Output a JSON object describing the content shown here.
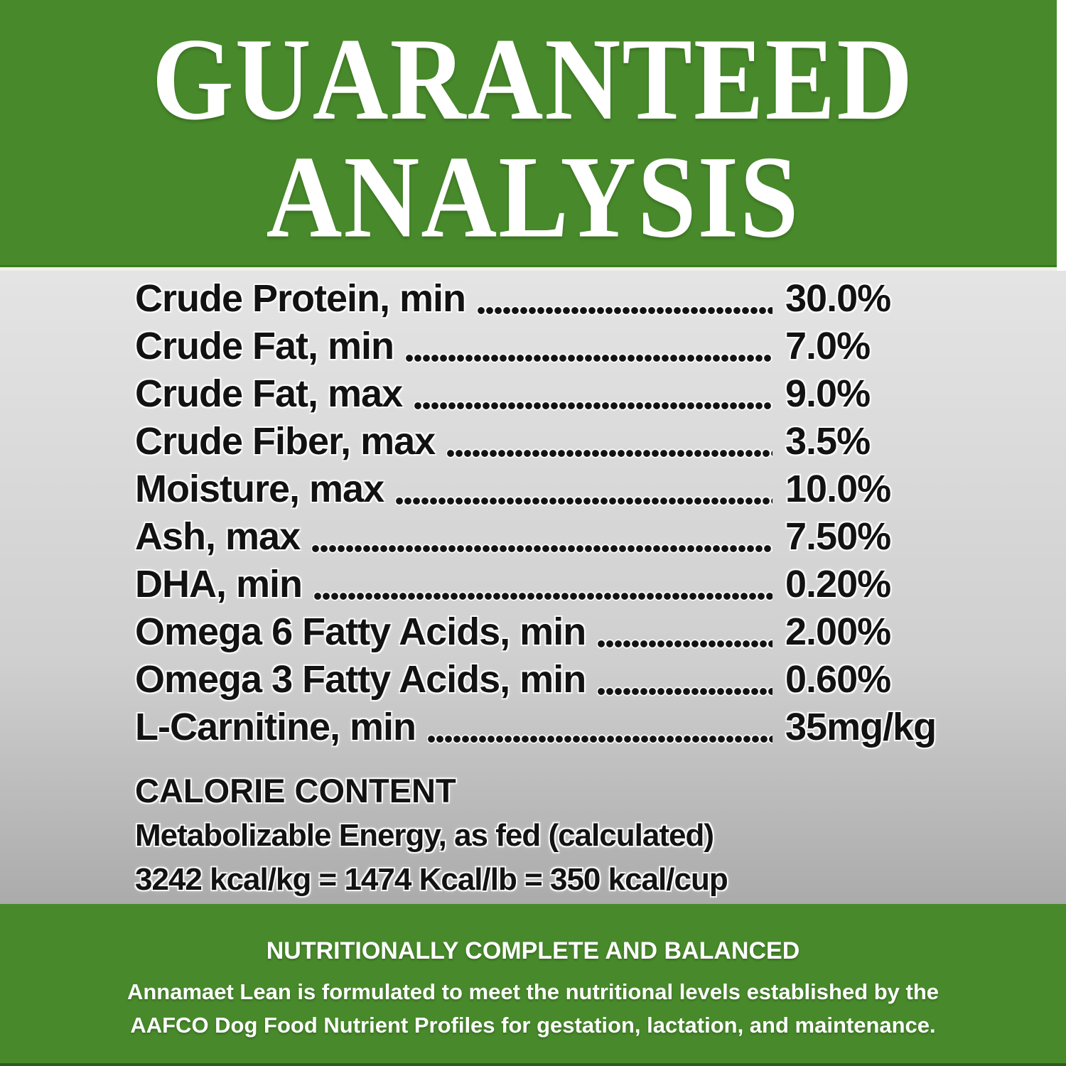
{
  "header": {
    "title_line1": "GUARANTEED",
    "title_line2": "ANALYSIS"
  },
  "analysis": {
    "rows": [
      {
        "label": "Crude Protein, min",
        "value": "30.0%"
      },
      {
        "label": "Crude Fat, min",
        "value": "7.0%"
      },
      {
        "label": "Crude Fat, max",
        "value": "9.0%"
      },
      {
        "label": "Crude Fiber, max",
        "value": "3.5%"
      },
      {
        "label": "Moisture, max",
        "value": "10.0%"
      },
      {
        "label": "Ash, max",
        "value": "7.50%"
      },
      {
        "label": "DHA, min",
        "value": "0.20%"
      },
      {
        "label": "Omega 6 Fatty Acids, min",
        "value": "2.00%"
      },
      {
        "label": "Omega 3 Fatty Acids, min",
        "value": "0.60%"
      },
      {
        "label": "L-Carnitine, min",
        "value": "35mg/kg"
      }
    ]
  },
  "calorie": {
    "heading": "CALORIE CONTENT",
    "line1": "Metabolizable Energy, as fed (calculated)",
    "line2": "3242 kcal/kg = 1474 Kcal/lb = 350 kcal/cup"
  },
  "footer": {
    "heading": "NUTRITIONALLY COMPLETE AND BALANCED",
    "line1": "Annamaet Lean is formulated to meet the nutritional levels established by the",
    "line2": "AAFCO Dog Food Nutrient Profiles for gestation, lactation, and maintenance."
  },
  "colors": {
    "green": "#488a2b",
    "green_dark_edge": "#3a7a1f",
    "divider": "#eef0e9",
    "gray_top": "#e4e4e4",
    "gray_bottom": "#ababab",
    "text": "#121212",
    "white": "#ffffff"
  }
}
